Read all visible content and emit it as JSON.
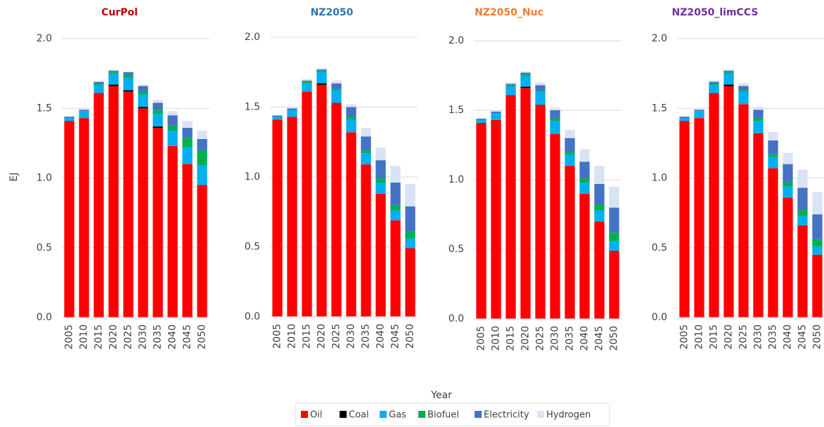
{
  "chart_data": [
    {
      "type": "bar",
      "stacked": true,
      "title": "CurPol",
      "title_color": "#c00000",
      "categories": [
        "2005",
        "2010",
        "2015",
        "2020",
        "2025",
        "2030",
        "2035",
        "2040",
        "2045",
        "2050"
      ],
      "series": [
        {
          "name": "Oil",
          "color": "#ff0000",
          "values": [
            1.41,
            1.43,
            1.61,
            1.66,
            1.62,
            1.5,
            1.36,
            1.23,
            1.1,
            0.95
          ]
        },
        {
          "name": "Coal",
          "color": "#000000",
          "values": [
            0,
            0,
            0,
            0.01,
            0.01,
            0.01,
            0.01,
            0,
            0,
            0
          ]
        },
        {
          "name": "Gas",
          "color": "#00b0f0",
          "values": [
            0.02,
            0.05,
            0.06,
            0.08,
            0.09,
            0.09,
            0.09,
            0.11,
            0.12,
            0.14
          ]
        },
        {
          "name": "Biofuel",
          "color": "#00b050",
          "values": [
            0,
            0,
            0.01,
            0.01,
            0.02,
            0.02,
            0.03,
            0.04,
            0.07,
            0.11
          ]
        },
        {
          "name": "Electricity",
          "color": "#4472c4",
          "values": [
            0.01,
            0.01,
            0.01,
            0.01,
            0.02,
            0.04,
            0.05,
            0.07,
            0.07,
            0.08
          ]
        },
        {
          "name": "Hydrogen",
          "color": "#dae3f3",
          "values": [
            0,
            0.01,
            0,
            0.01,
            0,
            0.01,
            0.02,
            0.03,
            0.05,
            0.06
          ]
        }
      ],
      "ylim": [
        0,
        2
      ],
      "yticks": [
        {
          "value": 0,
          "label": "0.0"
        },
        0.5,
        {
          "value": 1,
          "label": "1.0"
        },
        1.5,
        {
          "value": 2,
          "label": "2.0"
        }
      ],
      "grid": true
    },
    {
      "type": "bar",
      "stacked": true,
      "title": "NZ2050",
      "title_color": "#2e75b6",
      "categories": [
        "2005",
        "2010",
        "2015",
        "2020",
        "2025",
        "2030",
        "2035",
        "2040",
        "2045",
        "2050"
      ],
      "series": [
        {
          "name": "Oil",
          "color": "#ff0000",
          "values": [
            1.41,
            1.43,
            1.61,
            1.66,
            1.53,
            1.32,
            1.09,
            0.88,
            0.69,
            0.49
          ]
        },
        {
          "name": "Coal",
          "color": "#000000",
          "values": [
            0,
            0,
            0,
            0.01,
            0,
            0,
            0,
            0,
            0,
            0
          ]
        },
        {
          "name": "Gas",
          "color": "#00b0f0",
          "values": [
            0.02,
            0.05,
            0.06,
            0.08,
            0.09,
            0.09,
            0.08,
            0.08,
            0.07,
            0.07
          ]
        },
        {
          "name": "Biofuel",
          "color": "#00b050",
          "values": [
            0,
            0,
            0.01,
            0.01,
            0.01,
            0.02,
            0.02,
            0.03,
            0.04,
            0.05
          ]
        },
        {
          "name": "Electricity",
          "color": "#4472c4",
          "values": [
            0.01,
            0.01,
            0.01,
            0.01,
            0.04,
            0.07,
            0.1,
            0.13,
            0.16,
            0.18
          ]
        },
        {
          "name": "Hydrogen",
          "color": "#dae3f3",
          "values": [
            0,
            0.01,
            0.01,
            0.01,
            0.02,
            0.02,
            0.06,
            0.09,
            0.12,
            0.16
          ]
        }
      ],
      "ylim": [
        0,
        2
      ],
      "yticks": [
        {
          "value": 0,
          "label": "0.0"
        },
        0.5,
        {
          "value": 1,
          "label": "1.0"
        },
        1.5,
        {
          "value": 2,
          "label": "2.0"
        }
      ],
      "grid": true
    },
    {
      "type": "bar",
      "stacked": true,
      "title": "NZ2050_Nuc",
      "title_color": "#ed7d31",
      "categories": [
        "2005",
        "2010",
        "2015",
        "2020",
        "2025",
        "2030",
        "2035",
        "2040",
        "2045",
        "2050"
      ],
      "series": [
        {
          "name": "Oil",
          "color": "#ff0000",
          "values": [
            1.41,
            1.43,
            1.61,
            1.66,
            1.54,
            1.33,
            1.1,
            0.9,
            0.7,
            0.49
          ]
        },
        {
          "name": "Coal",
          "color": "#000000",
          "values": [
            0,
            0,
            0,
            0.01,
            0,
            0,
            0,
            0,
            0,
            0
          ]
        },
        {
          "name": "Gas",
          "color": "#00b0f0",
          "values": [
            0.02,
            0.05,
            0.06,
            0.08,
            0.09,
            0.09,
            0.08,
            0.08,
            0.08,
            0.07
          ]
        },
        {
          "name": "Biofuel",
          "color": "#00b050",
          "values": [
            0,
            0,
            0.01,
            0.01,
            0.01,
            0.02,
            0.02,
            0.03,
            0.04,
            0.06
          ]
        },
        {
          "name": "Electricity",
          "color": "#4472c4",
          "values": [
            0.01,
            0.01,
            0.01,
            0.01,
            0.04,
            0.06,
            0.1,
            0.12,
            0.15,
            0.18
          ]
        },
        {
          "name": "Hydrogen",
          "color": "#dae3f3",
          "values": [
            0,
            0.01,
            0.01,
            0.01,
            0.02,
            0.02,
            0.06,
            0.09,
            0.13,
            0.15
          ]
        }
      ],
      "ylim": [
        0,
        2
      ],
      "yticks": [
        {
          "value": 0,
          "label": "0.0"
        },
        0.5,
        {
          "value": 1,
          "label": "1.0"
        },
        1.5,
        {
          "value": 2,
          "label": "2.0"
        }
      ],
      "grid": true
    },
    {
      "type": "bar",
      "stacked": true,
      "title": "NZ2050_limCCS",
      "title_color": "#7030a0",
      "categories": [
        "2005",
        "2010",
        "2015",
        "2020",
        "2025",
        "2030",
        "2035",
        "2040",
        "2045",
        "2050"
      ],
      "series": [
        {
          "name": "Oil",
          "color": "#ff0000",
          "values": [
            1.41,
            1.43,
            1.61,
            1.66,
            1.53,
            1.32,
            1.07,
            0.86,
            0.66,
            0.45
          ]
        },
        {
          "name": "Coal",
          "color": "#000000",
          "values": [
            0,
            0,
            0,
            0.01,
            0,
            0,
            0,
            0,
            0,
            0
          ]
        },
        {
          "name": "Gas",
          "color": "#00b0f0",
          "values": [
            0.02,
            0.05,
            0.06,
            0.08,
            0.09,
            0.09,
            0.08,
            0.08,
            0.07,
            0.06
          ]
        },
        {
          "name": "Biofuel",
          "color": "#00b050",
          "values": [
            0,
            0,
            0.01,
            0.01,
            0.01,
            0.02,
            0.02,
            0.03,
            0.04,
            0.05
          ]
        },
        {
          "name": "Electricity",
          "color": "#4472c4",
          "values": [
            0.01,
            0.01,
            0.01,
            0.01,
            0.03,
            0.06,
            0.1,
            0.13,
            0.16,
            0.18
          ]
        },
        {
          "name": "Hydrogen",
          "color": "#dae3f3",
          "values": [
            0,
            0.01,
            0.01,
            0.01,
            0.02,
            0.02,
            0.06,
            0.08,
            0.13,
            0.16
          ]
        }
      ],
      "ylim": [
        0,
        2
      ],
      "yticks": [
        {
          "value": 0,
          "label": "0.0"
        },
        0.5,
        {
          "value": 1,
          "label": "1.0"
        },
        1.5,
        {
          "value": 2,
          "label": "2.0"
        }
      ],
      "grid": true
    }
  ],
  "ylabel": "EJ",
  "xlabel": "Year"
}
